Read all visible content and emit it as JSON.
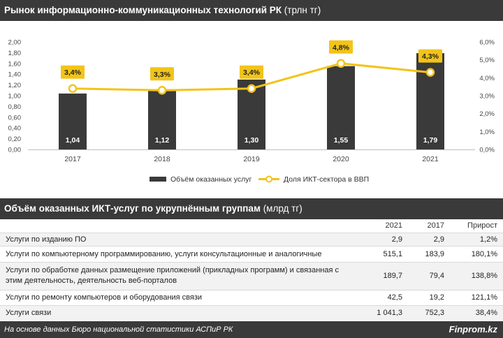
{
  "header1": {
    "title_bold": "Рынок информационно-коммуникационных технологий РК",
    "title_unit": " (трлн тг)"
  },
  "header2": {
    "title_bold": "Объём оказанных ИКТ-услуг по укрупнённым группам",
    "title_unit": " (млрд тг)"
  },
  "chart_data": {
    "type": "bar",
    "categories": [
      "2017",
      "2018",
      "2019",
      "2020",
      "2021"
    ],
    "series": [
      {
        "name": "Объём оказанных услуг",
        "type": "bar",
        "axis": "left",
        "values": [
          1.04,
          1.12,
          1.3,
          1.55,
          1.79
        ],
        "labels": [
          "1,04",
          "1,12",
          "1,30",
          "1,55",
          "1,79"
        ]
      },
      {
        "name": "Доля ИКТ-сектора в ВВП",
        "type": "line",
        "axis": "right",
        "values": [
          3.4,
          3.3,
          3.4,
          4.8,
          4.3
        ],
        "labels": [
          "3,4%",
          "3,3%",
          "3,4%",
          "4,8%",
          "4,3%"
        ]
      }
    ],
    "y_left": {
      "min": 0,
      "max": 2.0,
      "step": 0.2,
      "ticks": [
        "0,00",
        "0,20",
        "0,40",
        "0,60",
        "0,80",
        "1,00",
        "1,20",
        "1,40",
        "1,60",
        "1,80",
        "2,00"
      ]
    },
    "y_right": {
      "min": 0,
      "max": 6,
      "step": 1,
      "ticks": [
        "0,0%",
        "1,0%",
        "2,0%",
        "3,0%",
        "4,0%",
        "5,0%",
        "6,0%"
      ]
    },
    "grid": false,
    "legend_position": "bottom",
    "colors": {
      "bar": "#3a3a3a",
      "line": "#f2c418",
      "label_box": "#f2c418"
    }
  },
  "table": {
    "columns": [
      "",
      "2021",
      "2017",
      "Прирост"
    ],
    "rows": [
      {
        "name": "Услуги по изданию ПО",
        "v2021": "2,9",
        "v2017": "2,9",
        "growth": "1,2%"
      },
      {
        "name": "Услуги по компьютерному программированию, услуги консультационные и аналогичные",
        "v2021": "515,1",
        "v2017": "183,9",
        "growth": "180,1%"
      },
      {
        "name": "Услуги по обработке данных размещение приложений (прикладных программ) и связанная с этим деятельность, деятельность веб-порталов",
        "v2021": "189,7",
        "v2017": "79,4",
        "growth": "138,8%"
      },
      {
        "name": "Услуги по ремонту компьютеров и оборудования связи",
        "v2021": "42,5",
        "v2017": "19,2",
        "growth": "121,1%"
      },
      {
        "name": "Услуги связи",
        "v2021": "1 041,3",
        "v2017": "752,3",
        "growth": "38,4%"
      }
    ]
  },
  "footer": {
    "source": "На основе данных Бюро национальной статистики АСПиР РК",
    "brand": "Finprom.kz"
  }
}
